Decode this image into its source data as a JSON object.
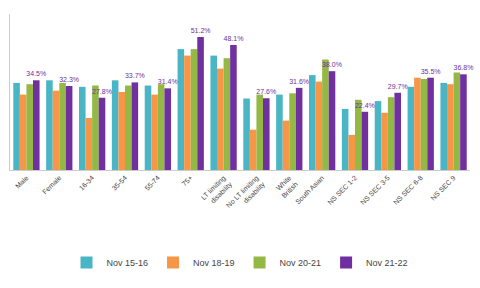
{
  "chart_data": {
    "type": "bar",
    "categories": [
      "Male",
      "Female",
      "16-34",
      "35-54",
      "55-74",
      "75+",
      "LT limiting\ndisability",
      "No LT limiting\ndisability",
      "White\nBritish",
      "South Asian",
      "NS SEC 1-2",
      "NS SEC 3-5",
      "NS SEC 6-8",
      "NS SEC 9"
    ],
    "series": [
      {
        "name": "Nov 15-16",
        "color": "#4ab5c4",
        "values": [
          33.5,
          34.5,
          32.0,
          34.5,
          32.5,
          46.5,
          44.0,
          27.5,
          29.0,
          36.5,
          23.5,
          26.5,
          32.0,
          33.5
        ]
      },
      {
        "name": "Nov 18-19",
        "color": "#f79646",
        "values": [
          29.0,
          30.5,
          20.0,
          30.0,
          29.0,
          44.0,
          39.0,
          15.5,
          19.0,
          34.0,
          13.5,
          22.0,
          35.5,
          33.0
        ]
      },
      {
        "name": "Nov 20-21",
        "color": "#93b944",
        "values": [
          33.0,
          33.5,
          32.5,
          32.5,
          33.0,
          46.5,
          43.0,
          29.0,
          29.5,
          42.5,
          27.0,
          28.0,
          35.0,
          37.5
        ]
      },
      {
        "name": "Nov 21-22",
        "color": "#7030a0",
        "values": [
          34.5,
          32.3,
          27.8,
          33.7,
          31.4,
          51.2,
          48.1,
          27.6,
          31.6,
          38.0,
          22.4,
          29.7,
          35.5,
          36.8
        ],
        "value_labels": [
          "34.5%",
          "32.3%",
          "27.8%",
          "33.7%",
          "31.4%",
          "51.2%",
          "48.1%",
          "27.6%",
          "31.6%",
          "38.0%",
          "22.4%",
          "29.7%",
          "35.5%",
          "36.8%"
        ]
      }
    ],
    "ylim": [
      0,
      60
    ],
    "tick_labels": "x",
    "grid": false,
    "legend": "lower center"
  }
}
